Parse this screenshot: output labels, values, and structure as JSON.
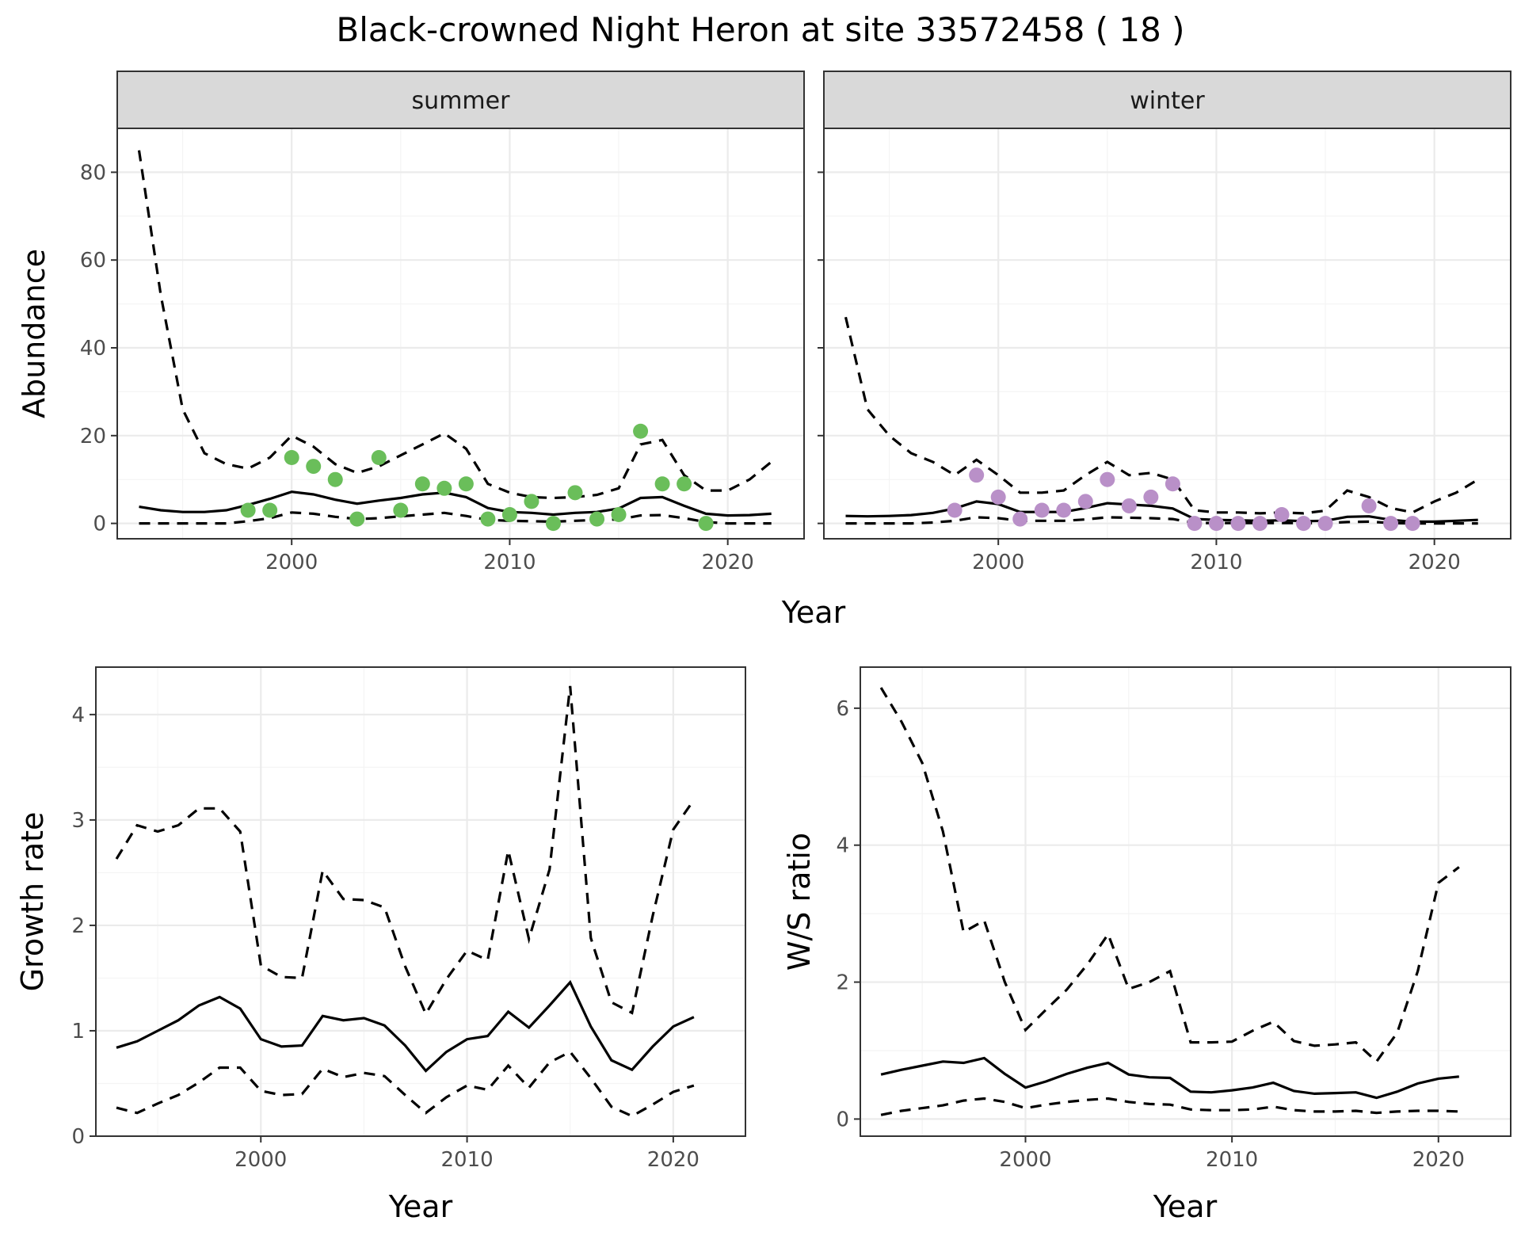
{
  "title": "Black-crowned Night Heron at site 33572458 ( 18 )",
  "colors": {
    "summer_points": "#6ABE5A",
    "winter_points": "#B990C8",
    "strip_fill": "#D9D9D9"
  },
  "chart_data": [
    {
      "id": "abundance",
      "type": "line",
      "facets": [
        "summer",
        "winter"
      ],
      "xlabel": "Year",
      "ylabel": "Abundance",
      "xlim": [
        1992,
        2023.5
      ],
      "ylim": [
        -3.5,
        90
      ],
      "xticks": [
        2000,
        2010,
        2020
      ],
      "yticks": [
        0,
        20,
        40,
        60,
        80
      ],
      "grid": true,
      "panels": [
        {
          "facet": "summer",
          "x": [
            1993,
            1994,
            1995,
            1996,
            1997,
            1998,
            1999,
            2000,
            2001,
            2002,
            2003,
            2004,
            2005,
            2006,
            2007,
            2008,
            2009,
            2010,
            2011,
            2012,
            2013,
            2014,
            2015,
            2016,
            2017,
            2018,
            2019,
            2020,
            2021,
            2022
          ],
          "mean": [
            3.8,
            3.0,
            2.6,
            2.6,
            3.0,
            4.2,
            5.6,
            7.2,
            6.6,
            5.4,
            4.5,
            5.2,
            5.8,
            6.6,
            7.0,
            6.0,
            3.5,
            2.6,
            2.4,
            2.0,
            2.4,
            2.6,
            3.4,
            5.8,
            6.0,
            4.0,
            2.2,
            1.8,
            1.9,
            2.2
          ],
          "upper": [
            85,
            52,
            26,
            16,
            13.5,
            12.5,
            15,
            20,
            17.5,
            13.5,
            11.5,
            13,
            15.5,
            18,
            20.5,
            17,
            9,
            7,
            6,
            5.8,
            6,
            6.5,
            8,
            18,
            19,
            11,
            7.5,
            7.5,
            10,
            14
          ],
          "lower": [
            0,
            0,
            0,
            0,
            0,
            0.5,
            1.2,
            2.5,
            2.2,
            1.5,
            1.0,
            1.2,
            1.6,
            2.0,
            2.4,
            1.7,
            0.8,
            0.6,
            0.5,
            0.4,
            0.6,
            0.8,
            0.9,
            1.8,
            1.9,
            1.2,
            0.3,
            0,
            0,
            0
          ],
          "points": {
            "x": [
              1998,
              1999,
              2000,
              2001,
              2002,
              2003,
              2004,
              2005,
              2006,
              2007,
              2008,
              2009,
              2010,
              2011,
              2012,
              2013,
              2014,
              2015,
              2016,
              2017,
              2018,
              2019
            ],
            "y": [
              3,
              3,
              15,
              13,
              10,
              1,
              15,
              3,
              9,
              8,
              9,
              1,
              2,
              5,
              0,
              7,
              1,
              2,
              21,
              9,
              9,
              0
            ]
          }
        },
        {
          "facet": "winter",
          "x": [
            1993,
            1994,
            1995,
            1996,
            1997,
            1998,
            1999,
            2000,
            2001,
            2002,
            2003,
            2004,
            2005,
            2006,
            2007,
            2008,
            2009,
            2010,
            2011,
            2012,
            2013,
            2014,
            2015,
            2016,
            2017,
            2018,
            2019,
            2020,
            2021,
            2022
          ],
          "mean": [
            1.7,
            1.6,
            1.7,
            1.9,
            2.4,
            3.4,
            5.0,
            4.4,
            2.6,
            2.6,
            2.6,
            3.5,
            4.6,
            4.3,
            4.0,
            3.4,
            1.0,
            0.8,
            0.7,
            0.6,
            0.7,
            0.5,
            0.6,
            1.5,
            1.6,
            0.8,
            0.4,
            0.4,
            0.6,
            0.8
          ],
          "upper": [
            47,
            26,
            20,
            16,
            14,
            11,
            14.5,
            11,
            7,
            7,
            7.5,
            11,
            14,
            11,
            11.5,
            10,
            3,
            2.5,
            2.5,
            2.3,
            2.5,
            2.3,
            2.9,
            7.5,
            6,
            3.5,
            2.5,
            5,
            7,
            10
          ],
          "lower": [
            0,
            0,
            0,
            0,
            0.2,
            0.6,
            1.4,
            1.2,
            0.6,
            0.6,
            0.6,
            0.9,
            1.4,
            1.3,
            1.2,
            1.0,
            0.1,
            0.1,
            0.1,
            0.1,
            0.1,
            0.05,
            0.1,
            0.3,
            0.4,
            0.1,
            0,
            0,
            0,
            0
          ],
          "points": {
            "x": [
              1998,
              1999,
              2000,
              2001,
              2002,
              2003,
              2004,
              2005,
              2006,
              2007,
              2008,
              2009,
              2010,
              2011,
              2012,
              2013,
              2014,
              2015,
              2017,
              2018,
              2019
            ],
            "y": [
              3,
              11,
              6,
              1,
              3,
              3,
              5,
              10,
              4,
              6,
              9,
              0,
              0,
              0,
              0,
              2,
              0,
              0,
              4,
              0,
              0
            ]
          }
        }
      ]
    },
    {
      "id": "growth",
      "type": "line",
      "xlabel": "Year",
      "ylabel": "Growth rate",
      "xlim": [
        1992,
        2023.5
      ],
      "ylim": [
        0,
        4.45
      ],
      "xticks": [
        2000,
        2010,
        2020
      ],
      "yticks": [
        0,
        1,
        2,
        3,
        4
      ],
      "grid": true,
      "x": [
        1993,
        1994,
        1995,
        1996,
        1997,
        1998,
        1999,
        2000,
        2001,
        2002,
        2003,
        2004,
        2005,
        2006,
        2007,
        2008,
        2009,
        2010,
        2011,
        2012,
        2013,
        2014,
        2015,
        2016,
        2017,
        2018,
        2019,
        2020,
        2021
      ],
      "mean": [
        0.84,
        0.9,
        1.0,
        1.1,
        1.24,
        1.32,
        1.21,
        0.92,
        0.85,
        0.86,
        1.14,
        1.1,
        1.12,
        1.05,
        0.86,
        0.62,
        0.8,
        0.92,
        0.95,
        1.18,
        1.03,
        1.24,
        1.46,
        1.04,
        0.72,
        0.63,
        0.85,
        1.04,
        1.13
      ],
      "upper": [
        2.63,
        2.95,
        2.89,
        2.95,
        3.11,
        3.11,
        2.89,
        1.62,
        1.51,
        1.5,
        2.52,
        2.25,
        2.24,
        2.17,
        1.61,
        1.16,
        1.49,
        1.76,
        1.67,
        2.71,
        1.87,
        2.53,
        4.27,
        1.88,
        1.27,
        1.17,
        2.09,
        2.91,
        3.19
      ],
      "lower": [
        0.27,
        0.22,
        0.31,
        0.39,
        0.51,
        0.65,
        0.65,
        0.43,
        0.39,
        0.4,
        0.64,
        0.56,
        0.6,
        0.57,
        0.39,
        0.22,
        0.37,
        0.48,
        0.44,
        0.67,
        0.46,
        0.7,
        0.8,
        0.55,
        0.28,
        0.19,
        0.3,
        0.42,
        0.48
      ]
    },
    {
      "id": "ratio",
      "type": "line",
      "xlabel": "Year",
      "ylabel": "W/S ratio",
      "xlim": [
        1992,
        2023.5
      ],
      "ylim": [
        -0.25,
        6.6
      ],
      "xticks": [
        2000,
        2010,
        2020
      ],
      "yticks": [
        0,
        2,
        4,
        6
      ],
      "grid": true,
      "x": [
        1993,
        1994,
        1995,
        1996,
        1997,
        1998,
        1999,
        2000,
        2001,
        2002,
        2003,
        2004,
        2005,
        2006,
        2007,
        2008,
        2009,
        2010,
        2011,
        2012,
        2013,
        2014,
        2015,
        2016,
        2017,
        2018,
        2019,
        2020,
        2021
      ],
      "mean": [
        0.65,
        0.72,
        0.78,
        0.84,
        0.82,
        0.89,
        0.66,
        0.46,
        0.55,
        0.66,
        0.75,
        0.82,
        0.65,
        0.61,
        0.6,
        0.4,
        0.39,
        0.42,
        0.46,
        0.53,
        0.41,
        0.37,
        0.38,
        0.39,
        0.31,
        0.4,
        0.52,
        0.59,
        0.62
      ],
      "upper": [
        6.3,
        5.8,
        5.2,
        4.2,
        2.73,
        2.9,
        2.0,
        1.3,
        1.6,
        1.89,
        2.26,
        2.7,
        1.9,
        2.0,
        2.16,
        1.12,
        1.12,
        1.13,
        1.29,
        1.42,
        1.14,
        1.07,
        1.09,
        1.12,
        0.84,
        1.26,
        2.16,
        3.45,
        3.68
      ],
      "lower": [
        0.06,
        0.12,
        0.16,
        0.2,
        0.27,
        0.3,
        0.25,
        0.16,
        0.21,
        0.25,
        0.28,
        0.3,
        0.25,
        0.22,
        0.21,
        0.14,
        0.13,
        0.13,
        0.14,
        0.18,
        0.13,
        0.11,
        0.11,
        0.12,
        0.09,
        0.11,
        0.12,
        0.12,
        0.11
      ]
    }
  ]
}
